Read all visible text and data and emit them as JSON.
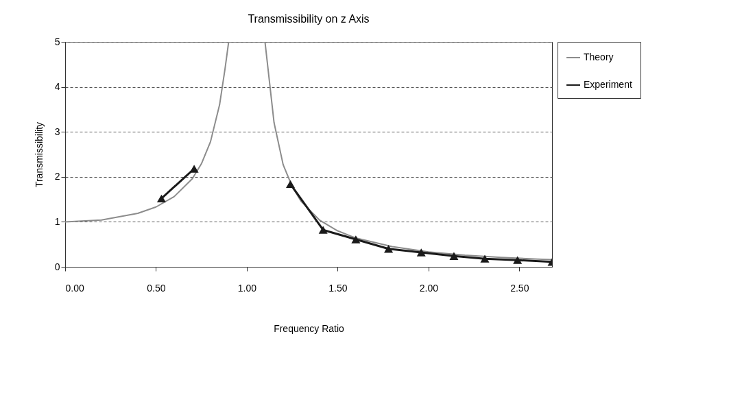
{
  "chart_data": {
    "type": "line",
    "title": "Transmissibility on z Axis",
    "xlabel": "Frequency Ratio",
    "ylabel": "Transmissibility",
    "xlim": [
      0,
      2.68
    ],
    "xticks": [
      {
        "value": 0,
        "label": "0.00"
      },
      {
        "value": 0.5,
        "label": "0.50"
      },
      {
        "value": 1,
        "label": "1.00"
      },
      {
        "value": 1.5,
        "label": "1.50"
      },
      {
        "value": 2,
        "label": "2.00"
      },
      {
        "value": 2.5,
        "label": "2.50"
      }
    ],
    "ylim": [
      0,
      5
    ],
    "yticks": [
      0,
      1,
      2,
      3,
      4,
      5
    ],
    "grid": "y",
    "legend": "right",
    "series": [
      {
        "name": "Theory",
        "color": "#8c8c8c",
        "marker": "none",
        "x": [
          0,
          0.2,
          0.4,
          0.5,
          0.6,
          0.7,
          0.75,
          0.8,
          0.85,
          0.88,
          0.9,
          1.0,
          1.1,
          1.15,
          1.2,
          1.25,
          1.3,
          1.4,
          1.5,
          1.6,
          1.8,
          2.0,
          2.2,
          2.4,
          2.6,
          2.68
        ],
        "values": [
          1,
          1.04,
          1.19,
          1.33,
          1.56,
          1.96,
          2.29,
          2.78,
          3.6,
          4.4,
          5,
          null,
          5,
          3.2,
          2.27,
          1.78,
          1.45,
          1.04,
          0.8,
          0.64,
          0.45,
          0.33,
          0.26,
          0.21,
          0.17,
          0.16
        ]
      },
      {
        "name": "Experiment",
        "color": "#1a1a1a",
        "marker": "triangle",
        "x": [
          0.53,
          0.71,
          1.0,
          1.24,
          1.42,
          1.6,
          1.78,
          1.96,
          2.14,
          2.31,
          2.49,
          2.68
        ],
        "values": [
          1.52,
          2.18,
          null,
          1.84,
          0.82,
          0.61,
          0.4,
          0.32,
          0.24,
          0.18,
          0.15,
          0.11
        ]
      }
    ]
  }
}
